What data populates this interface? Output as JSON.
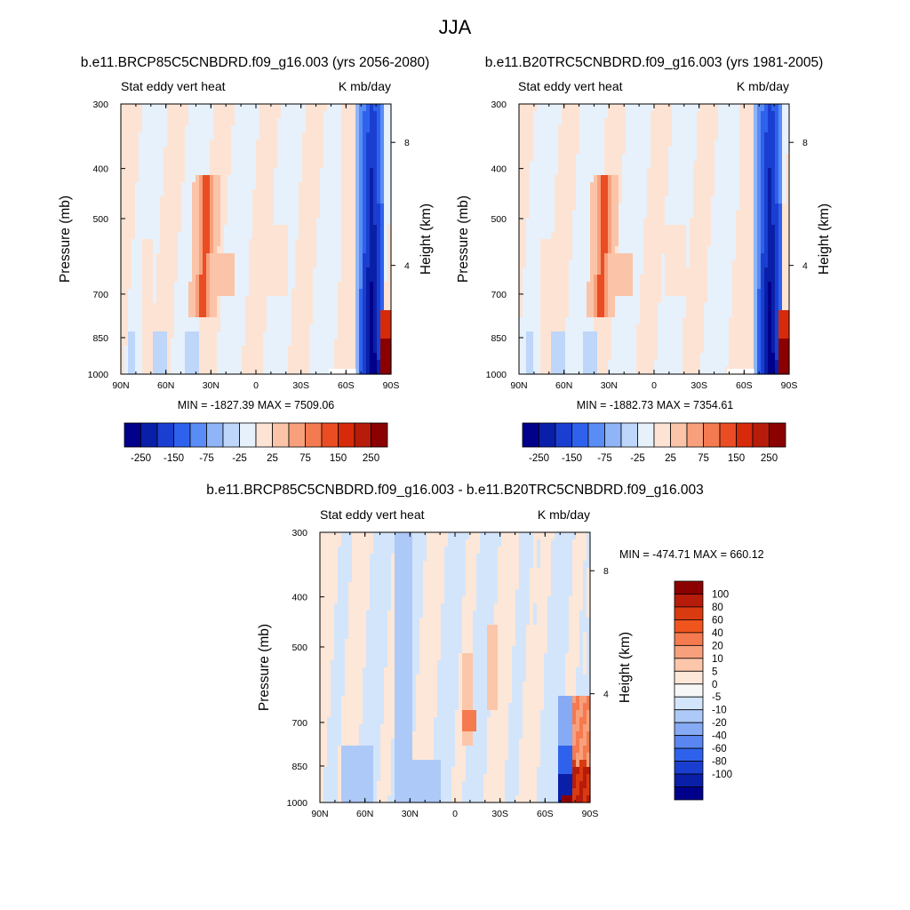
{
  "figure": {
    "title": "JJA"
  },
  "chart_data": [
    {
      "type": "heatmap",
      "title": "b.e11.BRCP85C5CNBDRD.f09_g16.003 (yrs 2056-2080)",
      "left_string": "Stat eddy vert heat",
      "right_string": "K mb/day",
      "ylabel": "Pressure (mb)",
      "y2label": "Height (km)",
      "x_ticks": [
        "90N",
        "60N",
        "30N",
        "0",
        "30S",
        "60S",
        "90S"
      ],
      "y_ticks": [
        "300",
        "400",
        "500",
        "700",
        "850",
        "1000"
      ],
      "y2_ticks": [
        "8",
        "4"
      ],
      "min_max_text": "MIN = -1827.39  MAX = 7509.06",
      "colorbar_labels": [
        "-250",
        "-150",
        "-75",
        "-25",
        "25",
        "75",
        "150",
        "250"
      ],
      "colorbar_orientation": "horizontal",
      "field_sign_by_band": [
        "-",
        "-",
        "+",
        "-",
        "-",
        "-",
        "-",
        "-",
        "-",
        "-",
        "-",
        "+",
        "+",
        "+",
        "+",
        "+",
        "+",
        "-",
        "-",
        "-",
        "-",
        "-",
        "-",
        "-",
        "-",
        "-",
        "-",
        "+",
        "+",
        "+",
        "+",
        "-",
        "-",
        "-",
        "-",
        "-",
        "-",
        "-",
        "-",
        "-",
        "-",
        "-",
        "-",
        "-",
        "+",
        "+",
        "+",
        "+",
        "-",
        "-",
        "-",
        "-",
        "-",
        "-",
        "-",
        "-",
        "-",
        "-",
        "-",
        "-"
      ],
      "features": {
        "positive_jet_latitude": "30N",
        "negative_core_latitude": "70S",
        "positive_surface_latitude": "85S"
      }
    },
    {
      "type": "heatmap",
      "title": "b.e11.B20TRC5CNBDRD.f09_g16.003 (yrs 1981-2005)",
      "left_string": "Stat eddy vert heat",
      "right_string": "K mb/day",
      "ylabel": "Pressure (mb)",
      "y2label": "Height (km)",
      "x_ticks": [
        "90N",
        "60N",
        "30N",
        "0",
        "30S",
        "60S",
        "90S"
      ],
      "y_ticks": [
        "300",
        "400",
        "500",
        "700",
        "850",
        "1000"
      ],
      "y2_ticks": [
        "8",
        "4"
      ],
      "min_max_text": "MIN = -1882.73  MAX = 7354.61",
      "colorbar_labels": [
        "-250",
        "-150",
        "-75",
        "-25",
        "25",
        "75",
        "150",
        "250"
      ],
      "colorbar_orientation": "horizontal"
    },
    {
      "type": "heatmap",
      "title": "b.e11.BRCP85C5CNBDRD.f09_g16.003 - b.e11.B20TRC5CNBDRD.f09_g16.003",
      "left_string": "Stat eddy vert heat",
      "right_string": "K mb/day",
      "ylabel": "Pressure (mb)",
      "y2label": "Height (km)",
      "x_ticks": [
        "90N",
        "60N",
        "30N",
        "0",
        "30S",
        "60S",
        "90S"
      ],
      "y_ticks": [
        "300",
        "400",
        "500",
        "700",
        "850",
        "1000"
      ],
      "y2_ticks": [
        "8",
        "4"
      ],
      "min_max_text": "MIN = -474.71  MAX = 660.12",
      "colorbar_labels": [
        "100",
        "80",
        "60",
        "40",
        "20",
        "10",
        "5",
        "0",
        "-5",
        "-10",
        "-20",
        "-40",
        "-60",
        "-80",
        "-100"
      ],
      "colorbar_orientation": "vertical"
    }
  ],
  "colormaps": {
    "abs": [
      "#00008b",
      "#0a1fa8",
      "#1a3fd0",
      "#2f62ec",
      "#5a8cf5",
      "#8fb4f7",
      "#bdd6fa",
      "#e6f1fc",
      "#fde3d4",
      "#fbc4a8",
      "#f8a07c",
      "#f47a51",
      "#ea4d24",
      "#d62a0b",
      "#b71b0a",
      "#8b0000"
    ],
    "diff": [
      "#8b0000",
      "#b71b0a",
      "#d93a10",
      "#f0551e",
      "#f57a4f",
      "#f8a07c",
      "#fbc6aa",
      "#fde7d8",
      "#f7f7f7",
      "#d3e5fb",
      "#adc9f7",
      "#86aaf4",
      "#5986f0",
      "#2f62ec",
      "#1a3fd0",
      "#0a1fa8",
      "#00008b"
    ]
  }
}
